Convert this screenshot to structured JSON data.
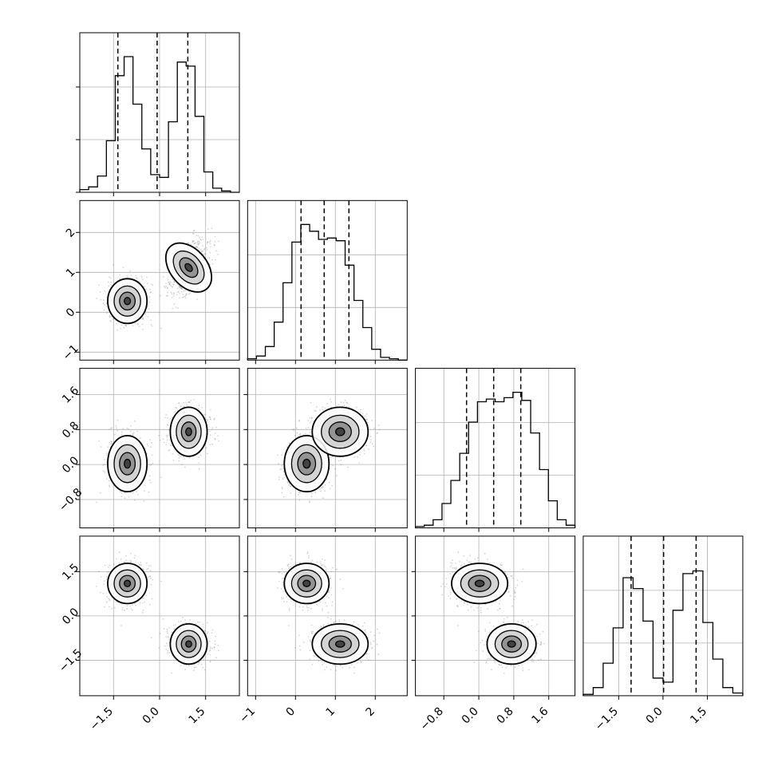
{
  "chart_data": {
    "type": "corner",
    "title": "",
    "parameters": [
      "",
      "",
      "",
      ""
    ],
    "ranges": [
      [
        -2.6,
        2.6
      ],
      [
        -1.2,
        2.8
      ],
      [
        -1.45,
        2.2
      ],
      [
        -2.7,
        2.7
      ]
    ],
    "ticks": [
      {
        "values": [
          -1.5,
          0.0,
          1.5
        ],
        "labels": [
          "−1.5",
          "0.0",
          "1.5"
        ]
      },
      {
        "values": [
          -1,
          0,
          1,
          2
        ],
        "labels": [
          "−1",
          "0",
          "1",
          "2"
        ]
      },
      {
        "values": [
          -0.8,
          0.0,
          0.8,
          1.6
        ],
        "labels": [
          "−0.8",
          "0.0",
          "0.8",
          "1.6"
        ]
      },
      {
        "values": [
          -1.5,
          0.0,
          1.5
        ],
        "labels": [
          "−1.5",
          "0.0",
          "1.5"
        ]
      }
    ],
    "quantiles": [
      [
        -1.36,
        -0.08,
        0.92
      ],
      [
        0.14,
        0.72,
        1.34
      ],
      [
        -0.28,
        0.34,
        0.96
      ],
      [
        -1.08,
        0.02,
        1.12
      ]
    ],
    "histograms": [
      {
        "counts": [
          0.02,
          0.04,
          0.12,
          0.38,
          0.86,
          1.0,
          0.65,
          0.32,
          0.13,
          0.11,
          0.52,
          0.96,
          0.93,
          0.56,
          0.15,
          0.03,
          0.01,
          0
        ],
        "peak": 1.0
      },
      {
        "counts": [
          0.01,
          0.03,
          0.1,
          0.28,
          0.57,
          0.87,
          1.0,
          0.95,
          0.89,
          0.9,
          0.88,
          0.7,
          0.44,
          0.24,
          0.08,
          0.02,
          0.01,
          0
        ],
        "peak": 1.0
      },
      {
        "counts": [
          0.01,
          0.02,
          0.06,
          0.18,
          0.35,
          0.55,
          0.78,
          0.93,
          0.95,
          0.93,
          0.96,
          1.0,
          0.94,
          0.7,
          0.43,
          0.2,
          0.06,
          0.02
        ],
        "peak": 1.0
      },
      {
        "counts": [
          0.01,
          0.06,
          0.24,
          0.5,
          0.87,
          0.79,
          0.55,
          0.13,
          0.1,
          0.63,
          0.9,
          0.92,
          0.54,
          0.27,
          0.06,
          0.02
        ],
        "peak": 1.0
      }
    ],
    "modes": [
      {
        "weight": 0.5,
        "mean": [
          -1.05,
          0.28,
          0.02,
          1.1
        ],
        "sd": [
          0.32,
          0.28,
          0.32,
          0.34
        ],
        "corr": [
          [
            1,
            0,
            0,
            0
          ],
          [
            0,
            1,
            0,
            0
          ],
          [
            0,
            0,
            1,
            0
          ],
          [
            0,
            0,
            0,
            1
          ]
        ]
      },
      {
        "weight": 0.5,
        "mean": [
          0.95,
          1.12,
          0.75,
          -0.95
        ],
        "sd": [
          0.3,
          0.35,
          0.28,
          0.34
        ],
        "corr": [
          [
            1,
            0.4,
            0,
            0
          ],
          [
            0.4,
            1,
            0,
            0
          ],
          [
            0,
            0,
            1,
            0
          ],
          [
            0,
            0,
            0,
            1
          ]
        ]
      }
    ],
    "grid": true,
    "quantile_line_style": "dashed"
  }
}
